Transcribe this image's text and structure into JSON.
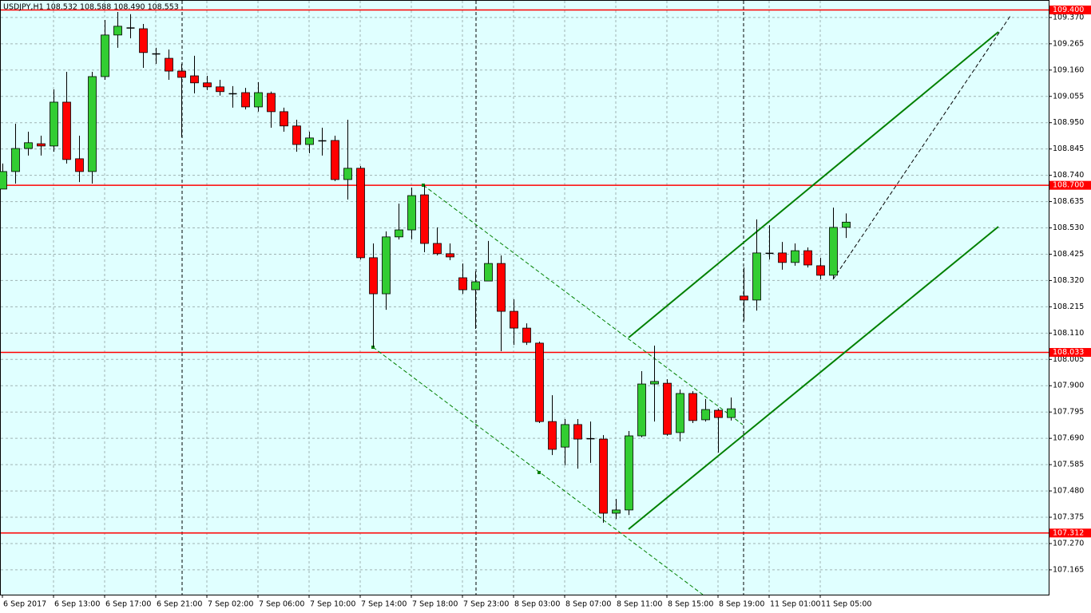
{
  "chart_data": {
    "type": "candlestick",
    "title": "USDJPY,H1  108.532 108.588 108.490 108.553",
    "categories": [
      "6 Sep 2017",
      null,
      null,
      null,
      "6 Sep 13:00",
      null,
      null,
      null,
      "6 Sep 17:00",
      null,
      null,
      null,
      "6 Sep 21:00",
      null,
      null,
      null,
      "7 Sep 02:00",
      null,
      null,
      null,
      "7 Sep 06:00",
      null,
      null,
      null,
      "7 Sep 10:00",
      null,
      null,
      null,
      "7 Sep 14:00",
      null,
      null,
      null,
      "7 Sep 18:00",
      null,
      null,
      null,
      "7 Sep 23:00",
      null,
      null,
      null,
      "8 Sep 03:00",
      null,
      null,
      null,
      "8 Sep 07:00",
      null,
      null,
      null,
      "8 Sep 11:00",
      null,
      null,
      null,
      "8 Sep 15:00",
      null,
      null,
      null,
      "8 Sep 19:00",
      null,
      null,
      null,
      "11 Sep 01:00",
      null,
      null,
      null,
      "11 Sep 05:00",
      null,
      null
    ],
    "open": [
      108.685,
      108.755,
      108.847,
      108.866,
      108.857,
      109.032,
      108.806,
      108.755,
      109.134,
      109.3,
      109.328,
      109.325,
      109.226,
      109.207,
      109.156,
      109.137,
      109.109,
      109.093,
      109.067,
      109.07,
      109.013,
      109.067,
      108.994,
      108.937,
      108.863,
      108.879,
      108.879,
      108.723,
      108.768,
      108.411,
      108.267,
      108.494,
      108.522,
      108.662,
      108.468,
      108.427,
      108.331,
      108.283,
      108.318,
      108.388,
      108.197,
      108.13,
      108.07,
      107.757,
      107.655,
      107.745,
      107.69,
      107.687,
      107.391,
      107.404,
      107.7,
      107.907,
      107.91,
      107.713,
      107.869,
      107.764,
      107.802,
      107.773,
      108.258,
      108.242,
      108.43,
      108.43,
      108.392,
      108.439,
      108.379,
      108.341,
      108.532
    ],
    "high": [
      108.787,
      108.946,
      108.914,
      108.898,
      109.083,
      109.153,
      108.898,
      109.153,
      109.36,
      109.392,
      109.383,
      109.344,
      109.249,
      109.242,
      109.185,
      109.217,
      109.137,
      109.121,
      109.096,
      109.089,
      109.112,
      109.074,
      109.01,
      108.962,
      108.914,
      108.93,
      108.898,
      108.962,
      108.777,
      108.468,
      108.516,
      108.627,
      108.691,
      108.701,
      108.532,
      108.468,
      108.388,
      108.356,
      108.478,
      108.42,
      108.245,
      108.149,
      108.076,
      107.862,
      107.767,
      107.767,
      107.757,
      107.703,
      107.448,
      107.719,
      107.958,
      108.06,
      107.926,
      107.885,
      107.878,
      107.847,
      107.808,
      107.853,
      108.372,
      108.564,
      108.541,
      108.474,
      108.468,
      108.452,
      108.411,
      108.611,
      108.588
    ],
    "low": [
      108.685,
      108.707,
      108.819,
      108.819,
      108.834,
      108.787,
      108.713,
      108.707,
      109.121,
      109.249,
      109.287,
      109.169,
      109.185,
      109.121,
      108.892,
      109.067,
      109.08,
      109.058,
      109.01,
      109.003,
      108.994,
      108.93,
      108.914,
      108.834,
      108.828,
      108.819,
      108.717,
      108.643,
      108.404,
      108.054,
      108.203,
      108.484,
      108.484,
      108.433,
      108.42,
      108.401,
      108.267,
      108.127,
      108.318,
      108.038,
      108.063,
      108.063,
      107.751,
      107.623,
      107.582,
      107.569,
      107.592,
      107.353,
      107.368,
      107.384,
      107.694,
      107.757,
      107.7,
      107.678,
      107.751,
      107.757,
      107.633,
      107.761,
      108.159,
      108.2,
      108.404,
      108.363,
      108.379,
      108.372,
      108.325,
      108.325,
      108.49
    ],
    "close": [
      108.755,
      108.847,
      108.87,
      108.857,
      109.032,
      108.803,
      108.755,
      109.134,
      109.3,
      109.335,
      109.328,
      109.23,
      109.223,
      109.156,
      109.131,
      109.109,
      109.093,
      109.074,
      109.064,
      109.013,
      109.07,
      108.994,
      108.937,
      108.863,
      108.889,
      108.876,
      108.723,
      108.768,
      108.411,
      108.267,
      108.494,
      108.522,
      108.659,
      108.468,
      108.427,
      108.414,
      108.283,
      108.315,
      108.388,
      108.197,
      108.13,
      108.073,
      107.757,
      107.646,
      107.745,
      107.687,
      107.687,
      107.391,
      107.404,
      107.7,
      107.907,
      107.917,
      107.706,
      107.869,
      107.761,
      107.805,
      107.773,
      107.808,
      108.242,
      108.43,
      108.427,
      108.392,
      108.439,
      108.382,
      108.341,
      108.532,
      108.553
    ],
    "up_color": "#32cd32",
    "down_color": "#ff0000",
    "level_color": "#ff0000",
    "ylim": [
      107.066,
      109.427
    ],
    "yticks": [
      {
        "value": 109.37,
        "label": "109.370"
      },
      109.265,
      {
        "value": 109.16,
        "label": "109.160"
      },
      109.055,
      {
        "value": 108.95,
        "label": "108.950"
      },
      108.845,
      {
        "value": 108.74,
        "label": "108.740"
      },
      108.635,
      {
        "value": 108.53,
        "label": "108.530"
      },
      108.425,
      {
        "value": 108.32,
        "label": "108.320"
      },
      108.215,
      {
        "value": 108.11,
        "label": "108.110"
      },
      108.005,
      {
        "value": 107.9,
        "label": "107.900"
      },
      107.795,
      {
        "value": 107.69,
        "label": "107.690"
      },
      107.585,
      {
        "value": 107.48,
        "label": "107.480"
      },
      107.375,
      {
        "value": 107.27,
        "label": "107.270"
      },
      107.165
    ],
    "levels": [
      {
        "value": 109.4,
        "label": "109.400"
      },
      {
        "value": 108.7,
        "label": "108.700"
      },
      {
        "value": 108.033,
        "label": "108.033"
      },
      {
        "value": 107.312,
        "label": "107.312"
      }
    ],
    "grid": true
  }
}
